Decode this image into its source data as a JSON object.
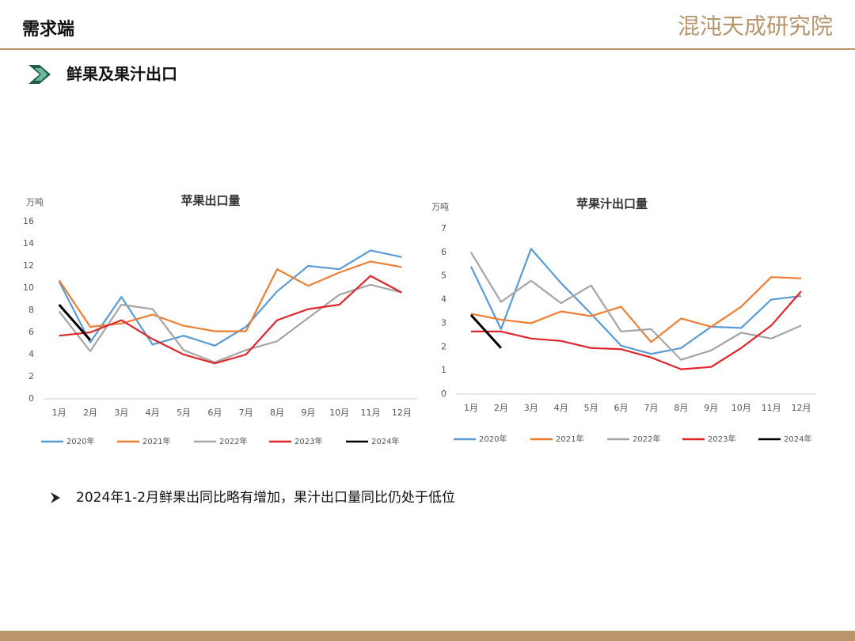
{
  "header": {
    "title": "需求端",
    "logo": "混沌天成研究院"
  },
  "section": {
    "title": "鲜果及果汁出口"
  },
  "note": "2024年1-2月鲜果出同比略有增加，果汁出口量同比仍处于低位",
  "chart_data": [
    {
      "type": "line",
      "title": "苹果出口量",
      "y_unit": "万吨",
      "categories": [
        "1月",
        "2月",
        "3月",
        "4月",
        "5月",
        "6月",
        "7月",
        "8月",
        "9月",
        "10月",
        "11月",
        "12月"
      ],
      "ylim": [
        0,
        16
      ],
      "yticks": [
        0,
        2,
        4,
        6,
        8,
        10,
        12,
        14,
        16
      ],
      "grid": false,
      "legend": "bottom",
      "series": [
        {
          "name": "2020年",
          "color": "#5b9bd5",
          "values": [
            10.6,
            5.1,
            9.2,
            4.9,
            5.7,
            4.8,
            6.5,
            9.7,
            12.0,
            11.7,
            13.4,
            12.8
          ]
        },
        {
          "name": "2021年",
          "color": "#ed7d31",
          "values": [
            10.7,
            6.5,
            6.8,
            7.6,
            6.6,
            6.1,
            6.1,
            11.7,
            10.2,
            11.4,
            12.4,
            11.9
          ]
        },
        {
          "name": "2022年",
          "color": "#a5a5a5",
          "values": [
            7.9,
            4.3,
            8.5,
            8.1,
            4.4,
            3.3,
            4.4,
            5.2,
            7.3,
            9.4,
            10.3,
            9.6
          ]
        },
        {
          "name": "2023年",
          "color": "#e0262b",
          "values": [
            5.7,
            6.0,
            7.1,
            5.4,
            4.0,
            3.2,
            4.0,
            7.1,
            8.1,
            8.5,
            11.1,
            9.6
          ]
        },
        {
          "name": "2024年",
          "color": "#000000",
          "values": [
            8.5,
            5.3,
            null,
            null,
            null,
            null,
            null,
            null,
            null,
            null,
            null,
            null
          ]
        }
      ]
    },
    {
      "type": "line",
      "title": "苹果汁出口量",
      "y_unit": "万吨",
      "categories": [
        "1月",
        "2月",
        "3月",
        "4月",
        "5月",
        "6月",
        "7月",
        "8月",
        "9月",
        "10月",
        "11月",
        "12月"
      ],
      "ylim": [
        0,
        7
      ],
      "yticks": [
        0,
        1,
        2,
        3,
        4,
        5,
        6,
        7
      ],
      "grid": false,
      "legend": "bottom",
      "series": [
        {
          "name": "2020年",
          "color": "#5b9bd5",
          "values": [
            5.4,
            2.75,
            6.15,
            4.7,
            3.4,
            2.05,
            1.7,
            1.95,
            2.85,
            2.8,
            4.0,
            4.15
          ]
        },
        {
          "name": "2021年",
          "color": "#ed7d31",
          "values": [
            3.4,
            3.15,
            3.0,
            3.5,
            3.3,
            3.7,
            2.2,
            3.2,
            2.85,
            3.7,
            4.95,
            4.9
          ]
        },
        {
          "name": "2022年",
          "color": "#a5a5a5",
          "values": [
            6.0,
            3.9,
            4.8,
            3.85,
            4.6,
            2.65,
            2.75,
            1.45,
            1.85,
            2.6,
            2.35,
            2.9
          ]
        },
        {
          "name": "2023年",
          "color": "#e0262b",
          "values": [
            2.65,
            2.65,
            2.35,
            2.25,
            1.95,
            1.9,
            1.55,
            1.05,
            1.15,
            1.95,
            2.9,
            4.35
          ]
        },
        {
          "name": "2024年",
          "color": "#000000",
          "values": [
            3.35,
            1.95,
            null,
            null,
            null,
            null,
            null,
            null,
            null,
            null,
            null,
            null
          ]
        }
      ]
    }
  ]
}
